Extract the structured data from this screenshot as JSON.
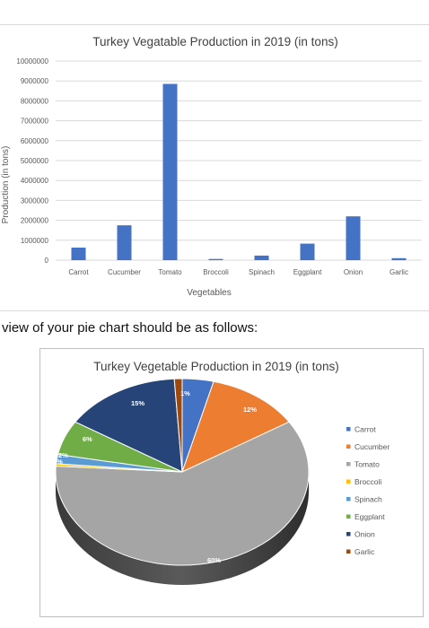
{
  "caption": "view of your pie chart should be as follows:",
  "colors": {
    "bar": "#4472c4",
    "grid": "#d9d9d9",
    "axis_text": "#595959",
    "title_text": "#404040"
  },
  "chart_data": [
    {
      "type": "bar",
      "title": "Turkey Vegatable Production in 2019 (in tons)",
      "xlabel": "Vegetables",
      "ylabel": "Production (in tons)",
      "categories": [
        "Carrot",
        "Cucumber",
        "Tomato",
        "Broccoli",
        "Spinach",
        "Eggplant",
        "Onion",
        "Garlic"
      ],
      "values": [
        630000,
        1750000,
        8850000,
        60000,
        230000,
        830000,
        2200000,
        100000
      ],
      "ylim": [
        0,
        10000000
      ],
      "yticks": [
        "0",
        "1000000",
        "2000000",
        "3000000",
        "4000000",
        "5000000",
        "6000000",
        "7000000",
        "8000000",
        "9000000",
        "10000000"
      ],
      "grid": true,
      "legend": "none"
    },
    {
      "type": "pie",
      "title": "Turkey Vegetable Production in 2019 (in tons)",
      "legend_position": "right",
      "slices": [
        {
          "label": "Carrot",
          "value": 4,
          "text": "4%",
          "color": "#4472c4"
        },
        {
          "label": "Cucumber",
          "value": 12,
          "text": "12%",
          "color": "#ed7d31"
        },
        {
          "label": "Tomato",
          "value": 60,
          "text": "60%",
          "color": "#a5a5a5"
        },
        {
          "label": "Broccoli",
          "value": 0.4,
          "text": "0%",
          "color": "#ffc000"
        },
        {
          "label": "Spinach",
          "value": 1.6,
          "text": "2%",
          "color": "#5b9bd5"
        },
        {
          "label": "Eggplant",
          "value": 6,
          "text": "6%",
          "color": "#70ad47"
        },
        {
          "label": "Onion",
          "value": 15,
          "text": "15%",
          "color": "#264478"
        },
        {
          "label": "Garlic",
          "value": 1,
          "text": "1%",
          "color": "#9e480e"
        }
      ]
    }
  ]
}
